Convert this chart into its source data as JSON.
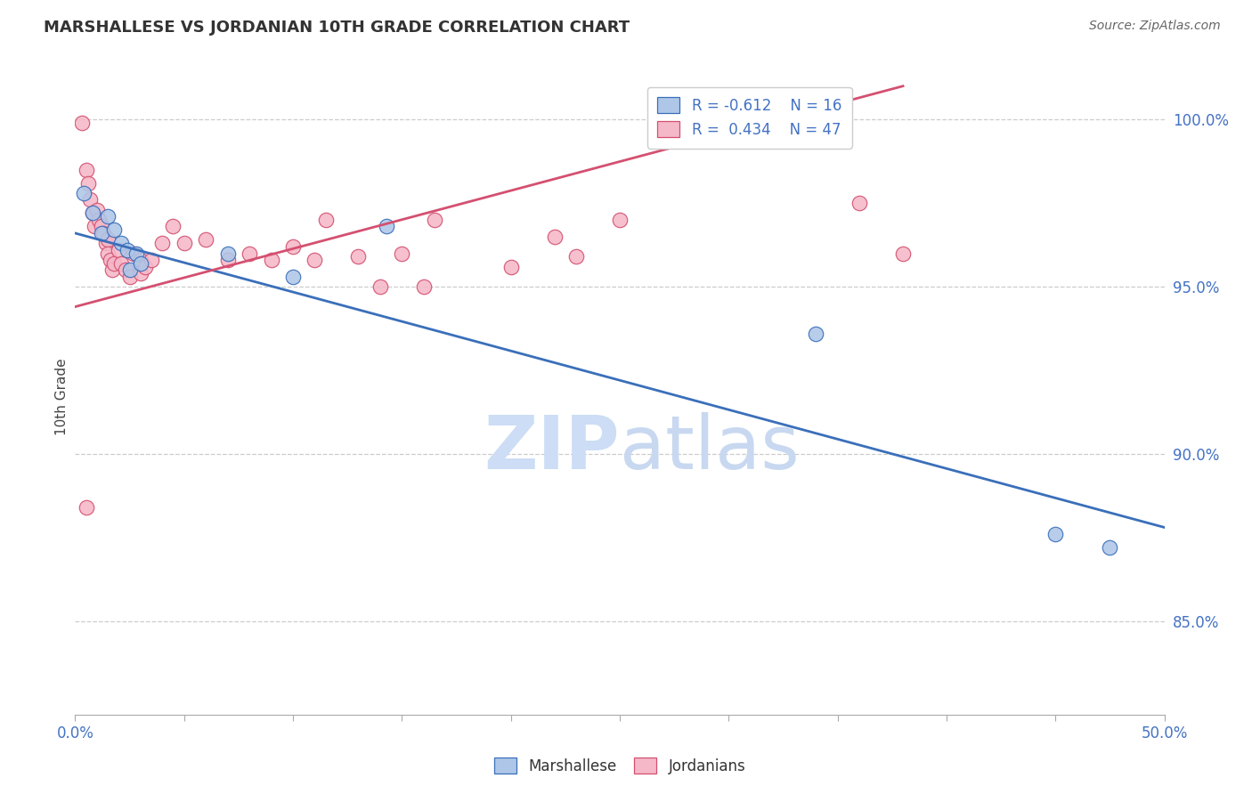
{
  "title": "MARSHALLESE VS JORDANIAN 10TH GRADE CORRELATION CHART",
  "source_text": "Source: ZipAtlas.com",
  "ylabel_label": "10th Grade",
  "xlim": [
    0.0,
    0.5
  ],
  "ylim": [
    0.822,
    1.012
  ],
  "xtick_positions": [
    0.0,
    0.05,
    0.1,
    0.15,
    0.2,
    0.25,
    0.3,
    0.35,
    0.4,
    0.45,
    0.5
  ],
  "ytick_positions": [
    0.85,
    0.9,
    0.95,
    1.0
  ],
  "yticklabels": [
    "85.0%",
    "90.0%",
    "95.0%",
    "100.0%"
  ],
  "grid_color": "#cccccc",
  "background_color": "#ffffff",
  "blue_fill_color": "#aec6e8",
  "blue_edge_color": "#3a6fba",
  "pink_fill_color": "#f5b8c8",
  "pink_edge_color": "#d45070",
  "line_blue_color": "#3a6fba",
  "line_pink_color": "#d45070",
  "axis_label_color": "#4472c4",
  "legend_R_blue": "R = -0.612",
  "legend_N_blue": "N = 16",
  "legend_R_pink": "R =  0.434",
  "legend_N_pink": "N = 47",
  "watermark_color": "#ccddf5",
  "blue_points": [
    [
      0.004,
      0.978
    ],
    [
      0.008,
      0.972
    ],
    [
      0.012,
      0.966
    ],
    [
      0.015,
      0.971
    ],
    [
      0.018,
      0.967
    ],
    [
      0.021,
      0.963
    ],
    [
      0.024,
      0.961
    ],
    [
      0.025,
      0.955
    ],
    [
      0.028,
      0.96
    ],
    [
      0.03,
      0.957
    ],
    [
      0.07,
      0.96
    ],
    [
      0.1,
      0.953
    ],
    [
      0.143,
      0.968
    ],
    [
      0.34,
      0.936
    ],
    [
      0.45,
      0.876
    ],
    [
      0.475,
      0.872
    ]
  ],
  "pink_points": [
    [
      0.003,
      0.999
    ],
    [
      0.005,
      0.985
    ],
    [
      0.006,
      0.981
    ],
    [
      0.007,
      0.976
    ],
    [
      0.008,
      0.972
    ],
    [
      0.009,
      0.968
    ],
    [
      0.01,
      0.973
    ],
    [
      0.011,
      0.97
    ],
    [
      0.012,
      0.968
    ],
    [
      0.013,
      0.966
    ],
    [
      0.014,
      0.963
    ],
    [
      0.015,
      0.964
    ],
    [
      0.015,
      0.96
    ],
    [
      0.016,
      0.958
    ],
    [
      0.017,
      0.955
    ],
    [
      0.018,
      0.957
    ],
    [
      0.02,
      0.961
    ],
    [
      0.021,
      0.957
    ],
    [
      0.023,
      0.955
    ],
    [
      0.025,
      0.953
    ],
    [
      0.027,
      0.96
    ],
    [
      0.03,
      0.958
    ],
    [
      0.03,
      0.954
    ],
    [
      0.032,
      0.956
    ],
    [
      0.035,
      0.958
    ],
    [
      0.04,
      0.963
    ],
    [
      0.045,
      0.968
    ],
    [
      0.05,
      0.963
    ],
    [
      0.06,
      0.964
    ],
    [
      0.07,
      0.958
    ],
    [
      0.08,
      0.96
    ],
    [
      0.09,
      0.958
    ],
    [
      0.1,
      0.962
    ],
    [
      0.11,
      0.958
    ],
    [
      0.115,
      0.97
    ],
    [
      0.13,
      0.959
    ],
    [
      0.14,
      0.95
    ],
    [
      0.15,
      0.96
    ],
    [
      0.16,
      0.95
    ],
    [
      0.165,
      0.97
    ],
    [
      0.2,
      0.956
    ],
    [
      0.22,
      0.965
    ],
    [
      0.23,
      0.959
    ],
    [
      0.25,
      0.97
    ],
    [
      0.36,
      0.975
    ],
    [
      0.38,
      0.96
    ],
    [
      0.005,
      0.884
    ]
  ],
  "blue_line": {
    "x0": 0.0,
    "x1": 0.5,
    "y0": 0.966,
    "y1": 0.878
  },
  "pink_line": {
    "x0": 0.0,
    "x1": 0.38,
    "y0": 0.944,
    "y1": 1.01
  }
}
